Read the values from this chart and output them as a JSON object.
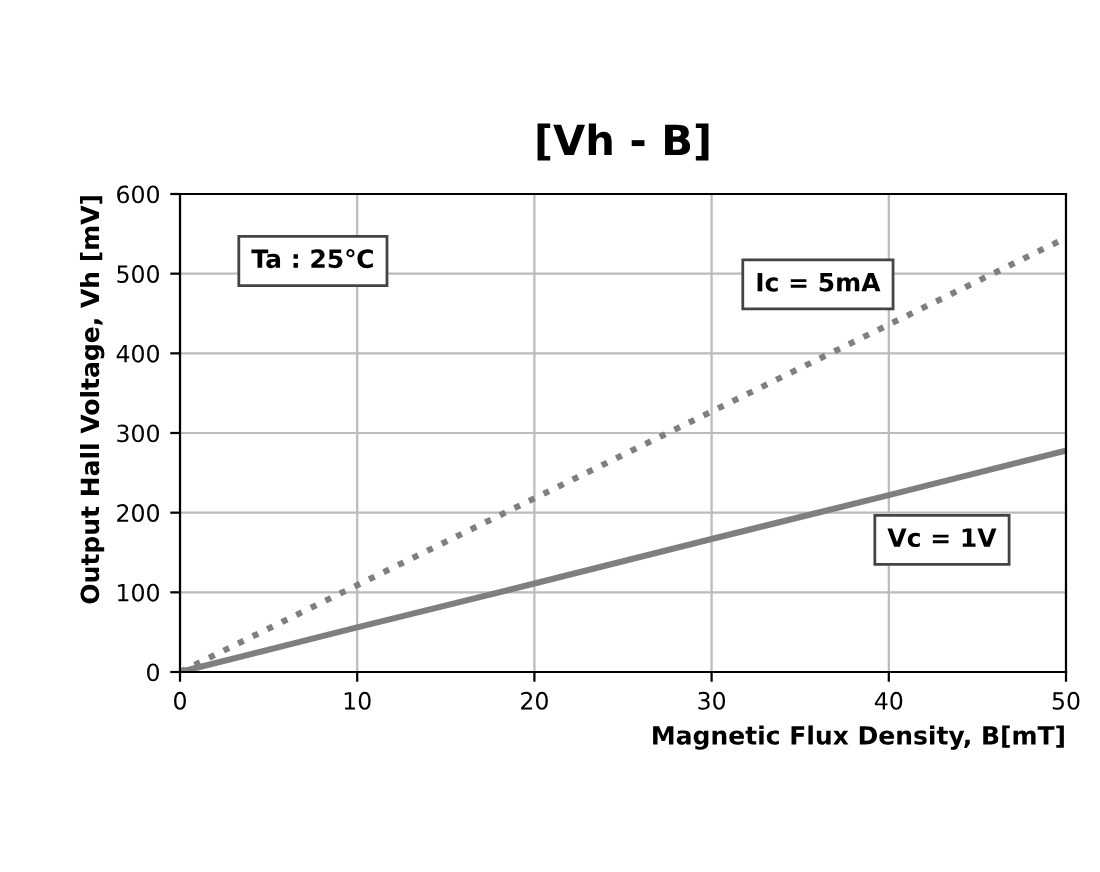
{
  "chart_data": {
    "type": "line",
    "title": "[Vh - B]",
    "xlabel": "Magnetic Flux Density, B[mT]",
    "ylabel": "Output Hall Voltage, Vh [mV]",
    "series": [
      {
        "name": "Ic = 5mA",
        "color": "#7f7f7f",
        "x": [
          0,
          10,
          20,
          30,
          40,
          50
        ],
        "values": [
          0,
          109,
          218,
          327,
          436,
          545
        ],
        "line_style": "dotted"
      },
      {
        "name": "Vc = 1V",
        "color": "#7f7f7f",
        "x": [
          0,
          10,
          20,
          30,
          40,
          50
        ],
        "values": [
          0,
          56,
          111,
          167,
          222,
          278
        ],
        "line_style": "solid"
      }
    ],
    "annotations": [
      "Ta : 25℃"
    ],
    "xlim": [
      0,
      50
    ],
    "xticks": [
      0,
      10,
      20,
      30,
      40,
      50
    ],
    "ylim": [
      0,
      600
    ],
    "yticks": [
      0,
      100,
      200,
      300,
      400,
      500,
      600
    ],
    "grid": true,
    "marker": "none"
  }
}
